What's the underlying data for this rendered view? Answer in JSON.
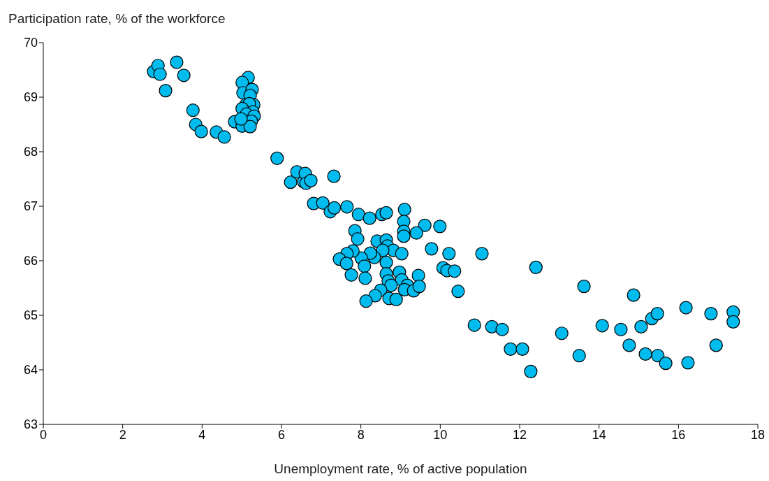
{
  "chart_data": {
    "type": "scatter",
    "xlabel": "Unemployment rate, % of active population",
    "ylabel": "Participation rate, % of the workforce",
    "xlim": [
      0,
      18
    ],
    "xticks": [
      0,
      2,
      4,
      6,
      8,
      10,
      12,
      14,
      16,
      18
    ],
    "ylim": [
      63,
      70
    ],
    "yticks": [
      63,
      64,
      65,
      66,
      67,
      68,
      69,
      70
    ],
    "grid": false,
    "marker": "circle",
    "series": [
      {
        "color": "#00bbee",
        "x": [
          2.78,
          2.89,
          2.94,
          3.08,
          3.36,
          3.54,
          3.77,
          3.84,
          3.98,
          4.36,
          4.56,
          4.82,
          5.16,
          5.01,
          5.03,
          5.26,
          5.21,
          5.1,
          5.3,
          5.19,
          5.01,
          5.28,
          5.12,
          5.31,
          5.24,
          5.01,
          5.21,
          4.98,
          5.89,
          6.23,
          6.39,
          6.56,
          6.6,
          6.62,
          6.74,
          7.32,
          6.81,
          7.04,
          7.23,
          7.33,
          7.65,
          7.94,
          8.22,
          8.53,
          8.64,
          9.1,
          9.08,
          9.08,
          9.08,
          9.61,
          9.99,
          9.4,
          7.85,
          7.92,
          8.41,
          8.64,
          8.67,
          8.82,
          9.03,
          8.55,
          8.34,
          8.24,
          8.01,
          7.8,
          7.65,
          7.46,
          7.64,
          8.09,
          8.64,
          7.76,
          8.11,
          8.64,
          8.69,
          8.97,
          9.45,
          9.03,
          9.17,
          9.1,
          9.33,
          9.47,
          8.76,
          8.5,
          8.36,
          8.71,
          8.89,
          8.13,
          9.78,
          10.22,
          11.05,
          10.07,
          10.17,
          10.36,
          10.45,
          12.41,
          13.62,
          14.87,
          16.19,
          16.82,
          17.38,
          17.38,
          10.86,
          11.3,
          11.56,
          11.77,
          12.07,
          12.28,
          13.06,
          13.5,
          14.08,
          14.55,
          14.76,
          15.06,
          15.33,
          15.47,
          15.17,
          15.48,
          15.68,
          16.24,
          16.95
        ],
        "values": [
          69.47,
          69.58,
          69.42,
          69.12,
          69.64,
          69.4,
          68.76,
          68.5,
          68.37,
          68.36,
          68.27,
          68.55,
          69.36,
          69.27,
          69.08,
          69.14,
          69.03,
          68.86,
          68.86,
          68.88,
          68.79,
          68.73,
          68.69,
          68.65,
          68.56,
          68.47,
          68.46,
          68.6,
          67.88,
          67.44,
          67.63,
          67.45,
          67.6,
          67.42,
          67.47,
          67.55,
          67.05,
          67.06,
          66.9,
          66.97,
          66.99,
          66.85,
          66.78,
          66.85,
          66.88,
          66.94,
          66.72,
          66.54,
          66.45,
          66.65,
          66.63,
          66.51,
          66.55,
          66.4,
          66.36,
          66.38,
          66.27,
          66.19,
          66.13,
          66.19,
          66.06,
          66.14,
          66.05,
          66.18,
          66.13,
          66.03,
          65.95,
          65.9,
          65.97,
          65.74,
          65.68,
          65.76,
          65.63,
          65.79,
          65.73,
          65.65,
          65.55,
          65.47,
          65.45,
          65.53,
          65.55,
          65.46,
          65.36,
          65.31,
          65.29,
          65.26,
          66.22,
          66.13,
          66.13,
          65.87,
          65.82,
          65.81,
          65.44,
          65.88,
          65.53,
          65.37,
          65.14,
          65.03,
          65.06,
          64.88,
          64.82,
          64.79,
          64.74,
          64.38,
          64.38,
          63.97,
          64.67,
          64.26,
          64.81,
          64.74,
          64.45,
          64.79,
          64.94,
          65.03,
          64.29,
          64.26,
          64.12,
          64.13,
          64.45
        ]
      }
    ]
  }
}
